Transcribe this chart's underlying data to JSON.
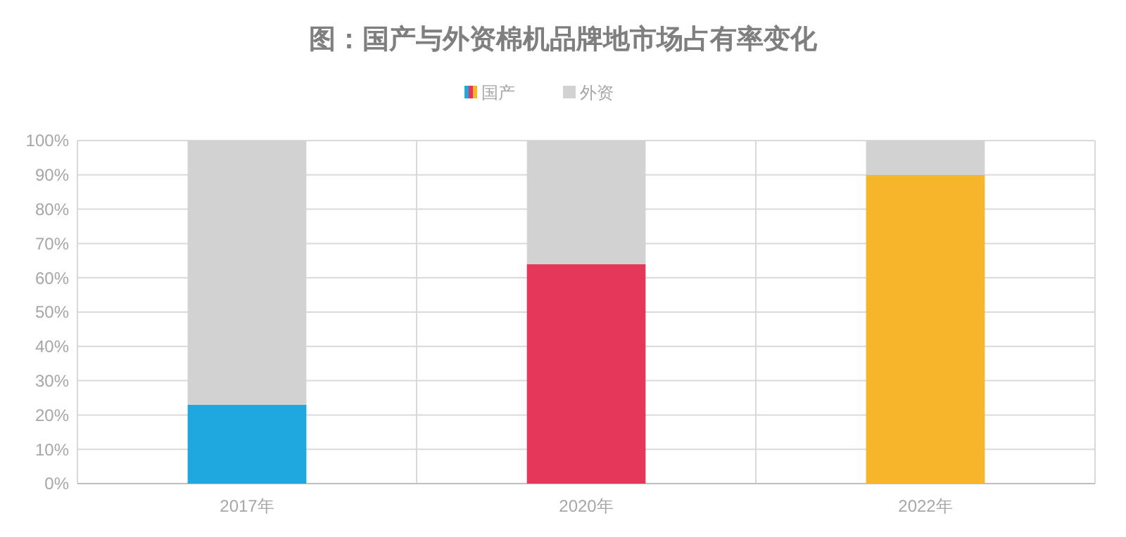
{
  "chart_data": {
    "type": "bar",
    "title": "图：国产与外资棉机品牌地市场占有率变化",
    "categories": [
      "2017年",
      "2020年",
      "2022年"
    ],
    "stacked": true,
    "series": [
      {
        "name": "国产",
        "colors": [
          "#1ea8df",
          "#e5375a",
          "#f7b52c"
        ],
        "values": [
          23,
          64,
          90
        ]
      },
      {
        "name": "外资",
        "color": "#d2d2d2",
        "values": [
          77,
          36,
          10
        ]
      }
    ],
    "ylim": [
      0,
      100
    ],
    "yticks": [
      {
        "value": 0,
        "label": "0%"
      },
      {
        "value": 10,
        "label": "10%"
      },
      {
        "value": 20,
        "label": "20%"
      },
      {
        "value": 30,
        "label": "30%"
      },
      {
        "value": 40,
        "label": "40%"
      },
      {
        "value": 50,
        "label": "50%"
      },
      {
        "value": 60,
        "label": "60%"
      },
      {
        "value": 70,
        "label": "70%"
      },
      {
        "value": 80,
        "label": "80%"
      },
      {
        "value": 90,
        "label": "90%"
      },
      {
        "value": 100,
        "label": "100%"
      }
    ],
    "grid": true,
    "legend": "top"
  }
}
